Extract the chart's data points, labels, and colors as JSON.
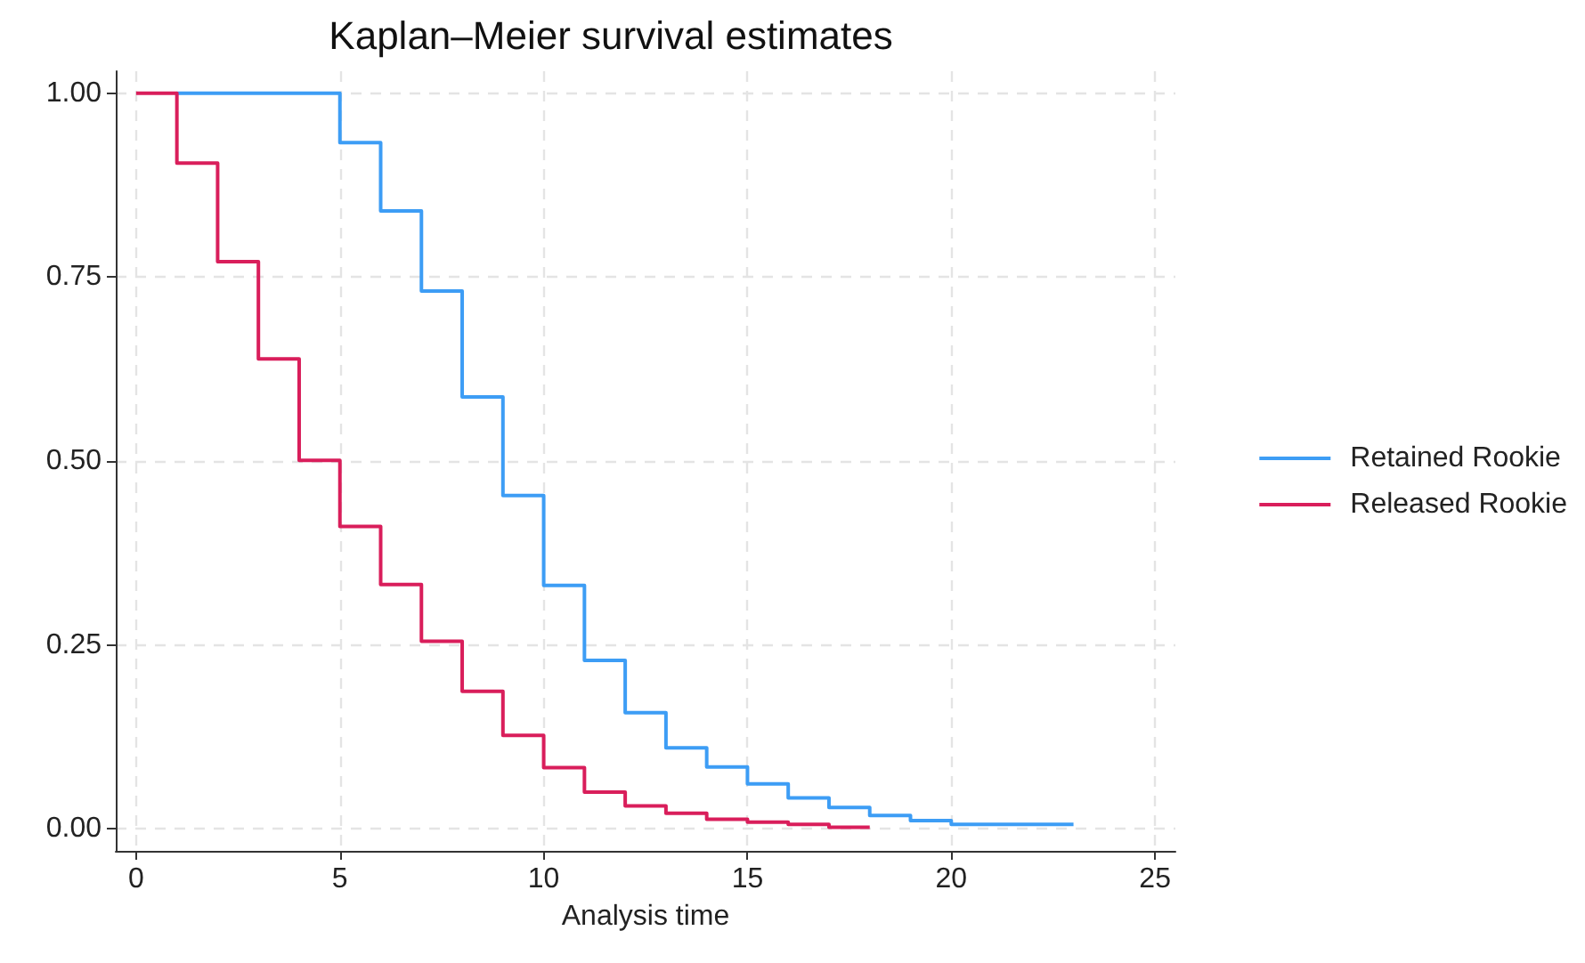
{
  "chart_data": {
    "type": "step",
    "title": "Kaplan–Meier survival estimates",
    "xlabel": "Analysis time",
    "series": [
      {
        "name": "Retained Rookie",
        "color": "#3d9df5",
        "x": [
          1,
          2,
          3,
          4,
          5,
          6,
          7,
          8,
          9,
          10,
          11,
          12,
          13,
          14,
          15,
          16,
          17,
          18,
          19,
          20,
          21,
          22,
          23
        ],
        "values": [
          1,
          1,
          1,
          1,
          0.933,
          0.84,
          0.731,
          0.587,
          0.453,
          0.331,
          0.229,
          0.158,
          0.11,
          0.084,
          0.061,
          0.042,
          0.029,
          0.018,
          0.011,
          0.006,
          0.006,
          0.006,
          0.006
        ]
      },
      {
        "name": "Released Rookie",
        "color": "#d91e5b",
        "x": [
          0,
          1,
          2,
          3,
          4,
          5,
          6,
          7,
          8,
          9,
          10,
          11,
          12,
          13,
          14,
          15,
          16,
          17,
          18
        ],
        "values": [
          1,
          0.905,
          0.771,
          0.639,
          0.501,
          0.411,
          0.332,
          0.255,
          0.187,
          0.127,
          0.083,
          0.05,
          0.031,
          0.021,
          0.013,
          0.009,
          0.006,
          0.002,
          0.002
        ]
      }
    ],
    "xlim": [
      -0.5,
      25.5
    ],
    "xticks": [
      0,
      5,
      10,
      15,
      20,
      25
    ],
    "ylim": [
      -0.03,
      1.03
    ],
    "yticks": [
      {
        "value": 0,
        "label": "0.00"
      },
      {
        "value": 0.25,
        "label": "0.25"
      },
      {
        "value": 0.5,
        "label": "0.50"
      },
      {
        "value": 0.75,
        "label": "0.75"
      },
      {
        "value": 1,
        "label": "1.00"
      }
    ],
    "grid": true,
    "legend": "right",
    "marker": "none",
    "line_style": "solid"
  }
}
